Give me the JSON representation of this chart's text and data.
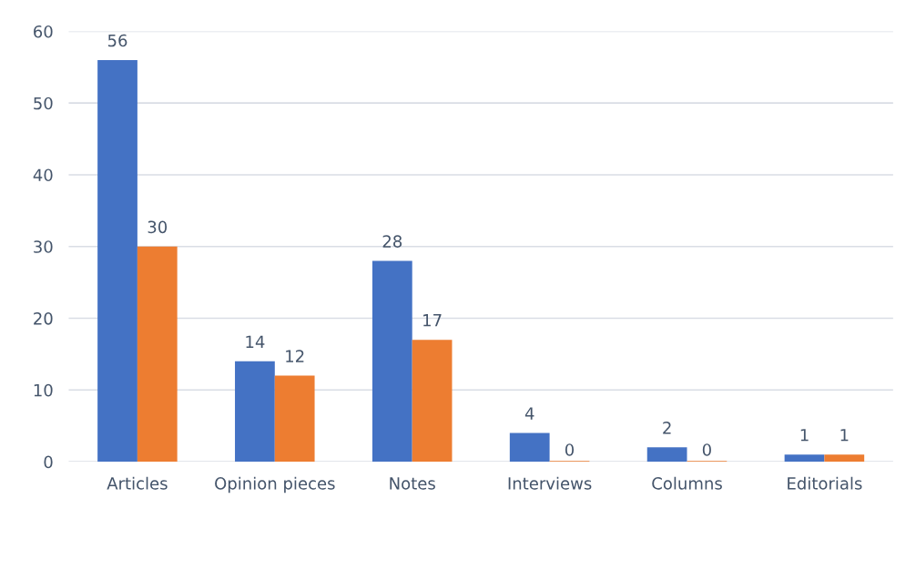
{
  "chart_data": {
    "type": "bar",
    "categories": [
      "Articles",
      "Opinion pieces",
      "Notes",
      "Interviews",
      "Columns",
      "Editorials"
    ],
    "series": [
      {
        "color": "#4472c4",
        "values": [
          56,
          14,
          28,
          4,
          2,
          1
        ]
      },
      {
        "color": "#ed7d31",
        "values": [
          30,
          12,
          17,
          0,
          0,
          1
        ]
      }
    ],
    "ylim": [
      0,
      60
    ],
    "yticks": [
      0,
      10,
      20,
      30,
      40,
      50,
      60
    ],
    "grid": "y",
    "data_labels": true
  }
}
